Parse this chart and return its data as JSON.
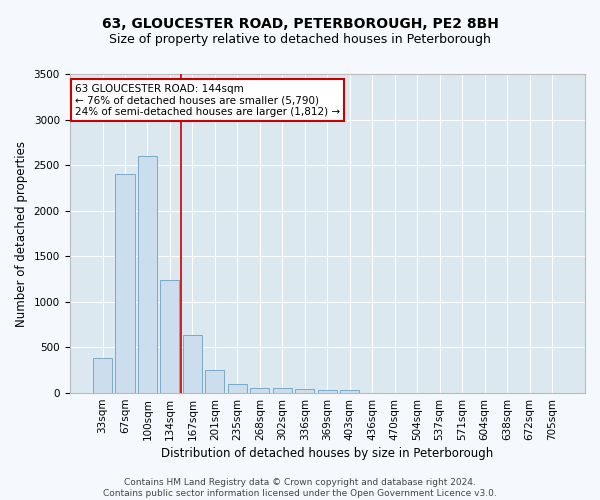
{
  "title1": "63, GLOUCESTER ROAD, PETERBOROUGH, PE2 8BH",
  "title2": "Size of property relative to detached houses in Peterborough",
  "xlabel": "Distribution of detached houses by size in Peterborough",
  "ylabel": "Number of detached properties",
  "footer1": "Contains HM Land Registry data © Crown copyright and database right 2024.",
  "footer2": "Contains public sector information licensed under the Open Government Licence v3.0.",
  "categories": [
    "33sqm",
    "67sqm",
    "100sqm",
    "134sqm",
    "167sqm",
    "201sqm",
    "235sqm",
    "268sqm",
    "302sqm",
    "336sqm",
    "369sqm",
    "403sqm",
    "436sqm",
    "470sqm",
    "504sqm",
    "537sqm",
    "571sqm",
    "604sqm",
    "638sqm",
    "672sqm",
    "705sqm"
  ],
  "values": [
    390,
    2400,
    2600,
    1240,
    640,
    255,
    100,
    60,
    60,
    45,
    35,
    30,
    0,
    0,
    0,
    0,
    0,
    0,
    0,
    0,
    0
  ],
  "bar_color": "#ccdded",
  "bar_edgecolor": "#7aaac8",
  "annotation_line1": "63 GLOUCESTER ROAD: 144sqm",
  "annotation_line2": "← 76% of detached houses are smaller (5,790)",
  "annotation_line3": "24% of semi-detached houses are larger (1,812) →",
  "annotation_box_facecolor": "#ffffff",
  "annotation_box_edgecolor": "#cc0000",
  "vline_color": "#cc0000",
  "ylim": [
    0,
    3500
  ],
  "yticks": [
    0,
    500,
    1000,
    1500,
    2000,
    2500,
    3000,
    3500
  ],
  "plot_bg_color": "#dce8f0",
  "grid_color": "#ffffff",
  "fig_bg_color": "#f5f8fc",
  "title1_fontsize": 10,
  "title2_fontsize": 9,
  "xlabel_fontsize": 8.5,
  "ylabel_fontsize": 8.5,
  "tick_fontsize": 7.5,
  "footer_fontsize": 6.5,
  "ann_fontsize": 7.5
}
